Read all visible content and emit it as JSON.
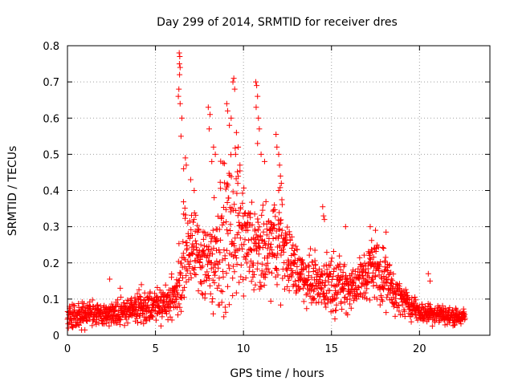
{
  "colors": {
    "series": "#ff0000",
    "frame": "#000000",
    "grid": "#a0a0a0"
  },
  "chart_data": {
    "type": "scatter",
    "title": "Day 299 of 2014, SRMTID for receiver dres",
    "xlabel": "GPS time / hours",
    "ylabel": "SRMTID / TECUs",
    "xlim": [
      0,
      24
    ],
    "ylim": [
      0,
      0.8
    ],
    "xticks": [
      0,
      5,
      10,
      15,
      20
    ],
    "xtick_labels": [
      "0",
      "5",
      "10",
      "15",
      "20"
    ],
    "yticks": [
      0,
      0.1,
      0.2,
      0.3,
      0.4,
      0.5,
      0.6,
      0.7,
      0.8
    ],
    "ytick_labels": [
      "0",
      "0.1",
      "0.2",
      "0.3",
      "0.4",
      "0.5",
      "0.6",
      "0.7",
      "0.8"
    ],
    "grid": true,
    "marker": "+",
    "series": [
      {
        "name": "SRMTID",
        "envelope": {
          "x": [
            0,
            0.5,
            1,
            1.5,
            2,
            2.5,
            3,
            3.5,
            4,
            4.5,
            5,
            5.5,
            6,
            6.3,
            6.5,
            6.8,
            7,
            7.5,
            8,
            8.5,
            9,
            9.5,
            10,
            10.5,
            11,
            11.5,
            12,
            12.5,
            13,
            13.5,
            14,
            14.5,
            15,
            15.5,
            16,
            16.5,
            17,
            17.5,
            18,
            18.5,
            19,
            19.5,
            20,
            20.5,
            21,
            21.5,
            22,
            22.6
          ],
          "y_mid": [
            0.06,
            0.055,
            0.055,
            0.06,
            0.055,
            0.06,
            0.065,
            0.07,
            0.075,
            0.08,
            0.085,
            0.09,
            0.1,
            0.14,
            0.2,
            0.24,
            0.25,
            0.22,
            0.2,
            0.23,
            0.28,
            0.3,
            0.26,
            0.24,
            0.22,
            0.24,
            0.27,
            0.22,
            0.18,
            0.16,
            0.15,
            0.14,
            0.15,
            0.14,
            0.13,
            0.14,
            0.17,
            0.19,
            0.16,
            0.12,
            0.1,
            0.08,
            0.065,
            0.06,
            0.06,
            0.055,
            0.05,
            0.05
          ],
          "spread": [
            0.03,
            0.03,
            0.03,
            0.03,
            0.03,
            0.03,
            0.035,
            0.035,
            0.04,
            0.04,
            0.04,
            0.045,
            0.05,
            0.08,
            0.15,
            0.12,
            0.1,
            0.1,
            0.12,
            0.14,
            0.18,
            0.18,
            0.12,
            0.12,
            0.1,
            0.12,
            0.13,
            0.08,
            0.07,
            0.06,
            0.06,
            0.06,
            0.08,
            0.06,
            0.06,
            0.06,
            0.07,
            0.08,
            0.07,
            0.05,
            0.04,
            0.03,
            0.025,
            0.025,
            0.025,
            0.02,
            0.02,
            0.02
          ]
        },
        "outliers": [
          [
            6.35,
            0.78
          ],
          [
            6.38,
            0.77
          ],
          [
            6.36,
            0.75
          ],
          [
            6.4,
            0.74
          ],
          [
            6.37,
            0.72
          ],
          [
            6.33,
            0.68
          ],
          [
            6.3,
            0.66
          ],
          [
            6.4,
            0.64
          ],
          [
            6.5,
            0.6
          ],
          [
            6.45,
            0.55
          ],
          [
            6.7,
            0.49
          ],
          [
            6.75,
            0.47
          ],
          [
            6.6,
            0.46
          ],
          [
            7.0,
            0.43
          ],
          [
            7.2,
            0.4
          ],
          [
            8.0,
            0.63
          ],
          [
            8.1,
            0.61
          ],
          [
            8.05,
            0.57
          ],
          [
            8.3,
            0.52
          ],
          [
            8.4,
            0.5
          ],
          [
            8.2,
            0.48
          ],
          [
            9.05,
            0.64
          ],
          [
            9.1,
            0.62
          ],
          [
            9.3,
            0.6
          ],
          [
            9.4,
            0.7
          ],
          [
            9.45,
            0.71
          ],
          [
            9.5,
            0.68
          ],
          [
            9.2,
            0.58
          ],
          [
            9.6,
            0.56
          ],
          [
            9.7,
            0.52
          ],
          [
            9.55,
            0.5
          ],
          [
            9.8,
            0.47
          ],
          [
            10.7,
            0.7
          ],
          [
            10.75,
            0.69
          ],
          [
            10.8,
            0.66
          ],
          [
            10.72,
            0.63
          ],
          [
            10.85,
            0.6
          ],
          [
            10.9,
            0.57
          ],
          [
            10.8,
            0.53
          ],
          [
            11.0,
            0.5
          ],
          [
            11.2,
            0.48
          ],
          [
            11.85,
            0.555
          ],
          [
            11.9,
            0.52
          ],
          [
            12.0,
            0.5
          ],
          [
            12.05,
            0.47
          ],
          [
            12.1,
            0.44
          ],
          [
            12.15,
            0.42
          ],
          [
            12.0,
            0.4
          ],
          [
            14.5,
            0.355
          ],
          [
            14.55,
            0.33
          ],
          [
            14.6,
            0.32
          ],
          [
            15.8,
            0.3
          ],
          [
            17.2,
            0.3
          ],
          [
            17.5,
            0.29
          ],
          [
            18.1,
            0.285
          ],
          [
            20.5,
            0.17
          ],
          [
            20.6,
            0.15
          ],
          [
            2.4,
            0.155
          ],
          [
            3.0,
            0.13
          ],
          [
            4.2,
            0.14
          ]
        ]
      }
    ]
  }
}
